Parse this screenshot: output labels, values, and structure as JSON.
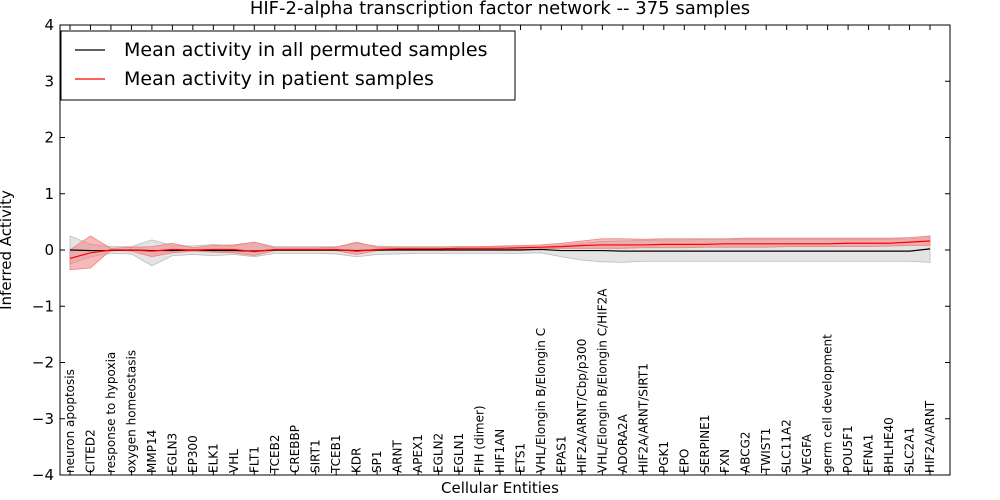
{
  "chart_data": {
    "type": "line",
    "title": "HIF-2-alpha transcription factor network -- 375 samples",
    "xlabel": "Cellular Entities",
    "ylabel": "Inferred Activity",
    "ylim": [
      -4,
      4
    ],
    "yticks": [
      4,
      3,
      2,
      1,
      0,
      -1,
      -2,
      -3,
      -4
    ],
    "ytick_labels": [
      "4",
      "3",
      "2",
      "1",
      "0",
      "−1",
      "−2",
      "−3",
      "−4"
    ],
    "legend_position": "top-left",
    "categories": [
      "neuron apoptosis",
      "CITED2",
      "response to hypoxia",
      "oxygen homeostasis",
      "MMP14",
      "EGLN3",
      "EP300",
      "ELK1",
      "VHL",
      "FLT1",
      "TCEB2",
      "CREBBP",
      "SIRT1",
      "TCEB1",
      "KDR",
      "SP1",
      "ARNT",
      "APEX1",
      "EGLN2",
      "EGLN1",
      "FIH (dimer)",
      "HIF1AN",
      "ETS1",
      "VHL/Elongin B/Elongin C",
      "EPAS1",
      "HIF2A/ARNT/Cbp/p300",
      "VHL/Elongin B/Elongin C/HIF2A",
      "ADORA2A",
      "HIF2A/ARNT/SIRT1",
      "PGK1",
      "EPO",
      "SERPINE1",
      "FXN",
      "ABCG2",
      "TWIST1",
      "SLC11A2",
      "VEGFA",
      "germ cell development",
      "POU5F1",
      "EFNA1",
      "BHLHE40",
      "SLC2A1",
      "HIF2A/ARNT"
    ],
    "series": [
      {
        "name": "Mean activity in all permuted samples",
        "color": "#000000",
        "band_color": "#bbbbbb",
        "values": [
          0.0,
          -0.01,
          -0.01,
          0.0,
          -0.01,
          -0.01,
          0.0,
          -0.01,
          -0.01,
          -0.02,
          0.0,
          0.0,
          0.0,
          0.0,
          -0.01,
          0.0,
          0.0,
          0.0,
          0.0,
          0.0,
          0.0,
          0.0,
          0.0,
          0.01,
          -0.01,
          -0.01,
          -0.01,
          -0.02,
          -0.02,
          -0.02,
          -0.02,
          -0.02,
          -0.02,
          -0.02,
          -0.02,
          -0.02,
          -0.02,
          -0.02,
          -0.02,
          -0.02,
          -0.02,
          -0.02,
          0.02
        ],
        "lower": [
          -0.25,
          -0.12,
          -0.06,
          -0.07,
          -0.28,
          -0.1,
          -0.08,
          -0.1,
          -0.08,
          -0.12,
          -0.06,
          -0.06,
          -0.06,
          -0.07,
          -0.12,
          -0.08,
          -0.07,
          -0.06,
          -0.06,
          -0.06,
          -0.06,
          -0.06,
          -0.06,
          -0.05,
          -0.12,
          -0.18,
          -0.21,
          -0.22,
          -0.2,
          -0.2,
          -0.2,
          -0.2,
          -0.2,
          -0.2,
          -0.2,
          -0.2,
          -0.2,
          -0.2,
          -0.2,
          -0.2,
          -0.2,
          -0.2,
          -0.22
        ],
        "upper": [
          0.25,
          0.1,
          0.06,
          0.06,
          0.18,
          0.08,
          0.07,
          0.1,
          0.07,
          0.14,
          0.06,
          0.06,
          0.06,
          0.06,
          0.12,
          0.07,
          0.06,
          0.06,
          0.06,
          0.06,
          0.06,
          0.06,
          0.06,
          0.05,
          0.09,
          0.12,
          0.15,
          0.16,
          0.17,
          0.18,
          0.18,
          0.19,
          0.19,
          0.19,
          0.19,
          0.19,
          0.19,
          0.19,
          0.19,
          0.19,
          0.19,
          0.2,
          0.22
        ]
      },
      {
        "name": "Mean activity in patient samples",
        "color": "#ff0000",
        "band_color": "#f08080",
        "values": [
          -0.15,
          -0.05,
          0.0,
          0.0,
          -0.02,
          0.01,
          0.0,
          0.01,
          0.01,
          -0.03,
          0.01,
          0.01,
          0.01,
          0.01,
          -0.02,
          0.01,
          0.02,
          0.02,
          0.02,
          0.03,
          0.03,
          0.03,
          0.04,
          0.05,
          0.06,
          0.08,
          0.09,
          0.09,
          0.09,
          0.1,
          0.1,
          0.1,
          0.11,
          0.11,
          0.11,
          0.11,
          0.11,
          0.11,
          0.12,
          0.12,
          0.12,
          0.14,
          0.16
        ],
        "lower": [
          -0.35,
          -0.32,
          0.0,
          -0.02,
          -0.12,
          -0.05,
          -0.02,
          -0.04,
          -0.05,
          -0.1,
          -0.01,
          -0.01,
          -0.01,
          -0.01,
          -0.08,
          -0.01,
          0.0,
          0.0,
          0.0,
          0.01,
          0.01,
          0.01,
          0.01,
          0.02,
          0.03,
          0.03,
          0.03,
          0.03,
          0.04,
          0.04,
          0.04,
          0.05,
          0.05,
          0.05,
          0.05,
          0.06,
          0.06,
          0.06,
          0.06,
          0.06,
          0.07,
          0.08,
          0.08
        ],
        "upper": [
          0.0,
          0.25,
          0.03,
          0.05,
          0.06,
          0.12,
          0.04,
          0.08,
          0.09,
          0.14,
          0.04,
          0.04,
          0.04,
          0.05,
          0.14,
          0.05,
          0.05,
          0.05,
          0.05,
          0.06,
          0.06,
          0.07,
          0.08,
          0.09,
          0.12,
          0.16,
          0.2,
          0.2,
          0.19,
          0.2,
          0.2,
          0.2,
          0.2,
          0.21,
          0.21,
          0.21,
          0.21,
          0.21,
          0.21,
          0.21,
          0.21,
          0.22,
          0.25
        ]
      }
    ]
  }
}
